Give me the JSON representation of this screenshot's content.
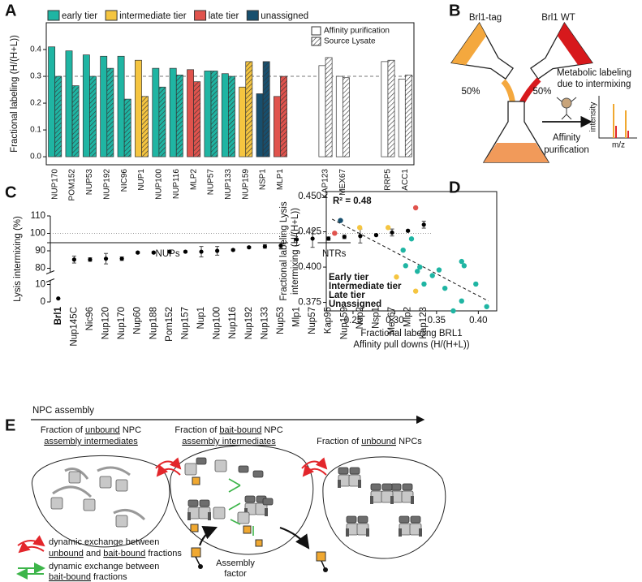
{
  "panel_labels": [
    "A",
    "B",
    "C",
    "D",
    "E"
  ],
  "chart_data": [
    {
      "type": "bar",
      "ylabel": "Fractional labeling (H/(H+L))",
      "ylim": [
        -0.03,
        0.5
      ],
      "yticks": [
        {
          "value": 0,
          "label": "0.0"
        },
        0.1,
        0.2,
        0.3,
        0.4
      ],
      "reference_line": 0.3,
      "tier_legend": [
        {
          "name": "early tier",
          "color": "#1fb5a3"
        },
        {
          "name": "intermediate tier",
          "color": "#f5c540"
        },
        {
          "name": "late tier",
          "color": "#e0534d"
        },
        {
          "name": "unassigned",
          "color": "#174f6e"
        }
      ],
      "series": [
        {
          "name": "Affinity purification",
          "pattern": "solid"
        },
        {
          "name": "Source Lysate",
          "pattern": "hatch"
        }
      ],
      "groups": [
        {
          "label": "NUPs",
          "categories": [
            "NUP170",
            "POM152",
            "NUP53",
            "NUP192",
            "NIC96",
            "NUP1",
            "NUP100",
            "NUP116",
            "MLP2",
            "NUP57",
            "NUP133",
            "NUP159",
            "NSP1",
            "MLP1"
          ],
          "colors": [
            "#1fb5a3",
            "#1fb5a3",
            "#1fb5a3",
            "#1fb5a3",
            "#1fb5a3",
            "#f5c540",
            "#1fb5a3",
            "#1fb5a3",
            "#e0534d",
            "#1fb5a3",
            "#1fb5a3",
            "#f5c540",
            "#174f6e",
            "#e0534d"
          ],
          "series": [
            {
              "values": [
                0.41,
                0.395,
                0.38,
                0.375,
                0.375,
                0.36,
                0.33,
                0.33,
                0.325,
                0.32,
                0.31,
                0.26,
                0.235,
                0.225
              ]
            },
            {
              "values": [
                0.3,
                0.265,
                0.3,
                0.33,
                0.215,
                0.225,
                0.26,
                0.305,
                0.28,
                0.32,
                0.3,
                0.355,
                0.355,
                0.3
              ]
            }
          ]
        },
        {
          "label": "NTRs",
          "categories": [
            "KAP123",
            "MEX67"
          ],
          "colors": [
            "#ffffff",
            "#ffffff"
          ],
          "series": [
            {
              "values": [
                0.34,
                0.3
              ]
            },
            {
              "values": [
                0.37,
                0.295
              ]
            }
          ]
        },
        {
          "categories": [
            "RRP5",
            "ACC1"
          ],
          "colors": [
            "#ffffff",
            "#ffffff"
          ],
          "series": [
            {
              "values": [
                0.355,
                0.29
              ]
            },
            {
              "values": [
                0.36,
                0.305
              ]
            }
          ]
        }
      ]
    },
    {
      "type": "errorbar",
      "ylabel": "Lysis intermixing (%)",
      "ylim": [
        0,
        110
      ],
      "ybreak": [
        10,
        80
      ],
      "yticks": [
        0,
        10,
        80,
        90,
        100,
        110
      ],
      "reference_line": 100,
      "color": "#000000",
      "categories": [
        "Brl1",
        "Nup145C",
        "Nic96",
        "Nup120",
        "Nup170",
        "Nup60",
        "Nup188",
        "Pom152",
        "Nup157",
        "Nup1",
        "Nup100",
        "Nup116",
        "Nup192",
        "Nup133",
        "Nup53",
        "Mlp1",
        "Nup57",
        "Kap95",
        "Nup159",
        "Nup2",
        "Nsp1",
        "Mex67",
        "Mlp2",
        "Kap123"
      ],
      "values": [
        2,
        85,
        85,
        85.5,
        85.5,
        89,
        89,
        89.5,
        89.5,
        89.5,
        90,
        90.5,
        92,
        92.5,
        93,
        96.5,
        97,
        97,
        98,
        98.5,
        99,
        100.5,
        101.5,
        105
      ],
      "errors": [
        0,
        2,
        1,
        3,
        1,
        0.5,
        0.5,
        0.5,
        0.5,
        3,
        2.5,
        0.5,
        0.5,
        1,
        1.5,
        3.5,
        5,
        1,
        1,
        4,
        0.5,
        2,
        0.5,
        2
      ]
    },
    {
      "type": "scatter",
      "xlabel": [
        "Fractional labeling BRL1",
        "Affinity pull downs (H/(H+L))"
      ],
      "ylabel": [
        "Fractional labeling Lysis",
        "intermixing (H/(H+L))"
      ],
      "annotation": "R² = 0.48",
      "xlim": [
        0.218,
        0.422
      ],
      "ylim": [
        0.369,
        0.4535
      ],
      "xticks": [
        0.25,
        {
          "value": 0.3,
          "label": "0.30"
        },
        0.35,
        {
          "value": 0.4,
          "label": "0.40"
        }
      ],
      "yticks": [
        0.375,
        {
          "value": 0.4,
          "label": "0.400"
        },
        0.425,
        {
          "value": 0.45,
          "label": "0.450"
        }
      ],
      "trendline": {
        "x": [
          0.225,
          0.412
        ],
        "y": [
          0.434,
          0.376
        ]
      },
      "legend": "bottom-left",
      "series": [
        {
          "name": "Early tier",
          "color": "#1fb5a3",
          "x": [
            0.31,
            0.32,
            0.313,
            0.327,
            0.33,
            0.345,
            0.353,
            0.36,
            0.37,
            0.38,
            0.383,
            0.38,
            0.397,
            0.41,
            0.335
          ],
          "y": [
            0.412,
            0.42,
            0.401,
            0.397,
            0.4,
            0.394,
            0.398,
            0.385,
            0.369,
            0.376,
            0.401,
            0.404,
            0.388,
            0.372,
            0.388
          ]
        },
        {
          "name": "Intermediate tier",
          "color": "#f5c540",
          "x": [
            0.258,
            0.292,
            0.302,
            0.325
          ],
          "y": [
            0.428,
            0.428,
            0.393,
            0.383
          ]
        },
        {
          "name": "Late tier",
          "color": "#e0534d",
          "x": [
            0.228,
            0.325
          ],
          "y": [
            0.424,
            0.442
          ]
        },
        {
          "name": "Unassigned",
          "color": "#174f6e",
          "x": [
            0.235
          ],
          "y": [
            0.433
          ]
        }
      ]
    }
  ],
  "diagram_b": {
    "tag": "Brl1-tag",
    "wt": "Brl1 WT",
    "left_pct": "50%",
    "right_pct": "50%",
    "metabolic": [
      "Metabolic labeling",
      "due to intermixing"
    ],
    "affinity": [
      "Affinity",
      "purification"
    ],
    "intensity": "intensity",
    "mz": "m/z"
  },
  "diagram_e": {
    "title": "NPC assembly",
    "fraction_1": [
      "Fraction of ",
      "unbound",
      " NPC",
      "assembly intermediates"
    ],
    "fraction_2": [
      "Fraction of ",
      "bait-bound",
      " NPC",
      "assembly intermediates"
    ],
    "fraction_3": [
      "Fraction of ",
      "unbound",
      " NPCs"
    ],
    "legend_red": [
      "dynamic exchange between",
      "unbound",
      " and ",
      "bait-bound",
      " fractions"
    ],
    "legend_green": [
      "dynamic exchange between",
      "bait-bound",
      " fractions"
    ],
    "assembly_factor": [
      "Assembly",
      "factor"
    ]
  }
}
